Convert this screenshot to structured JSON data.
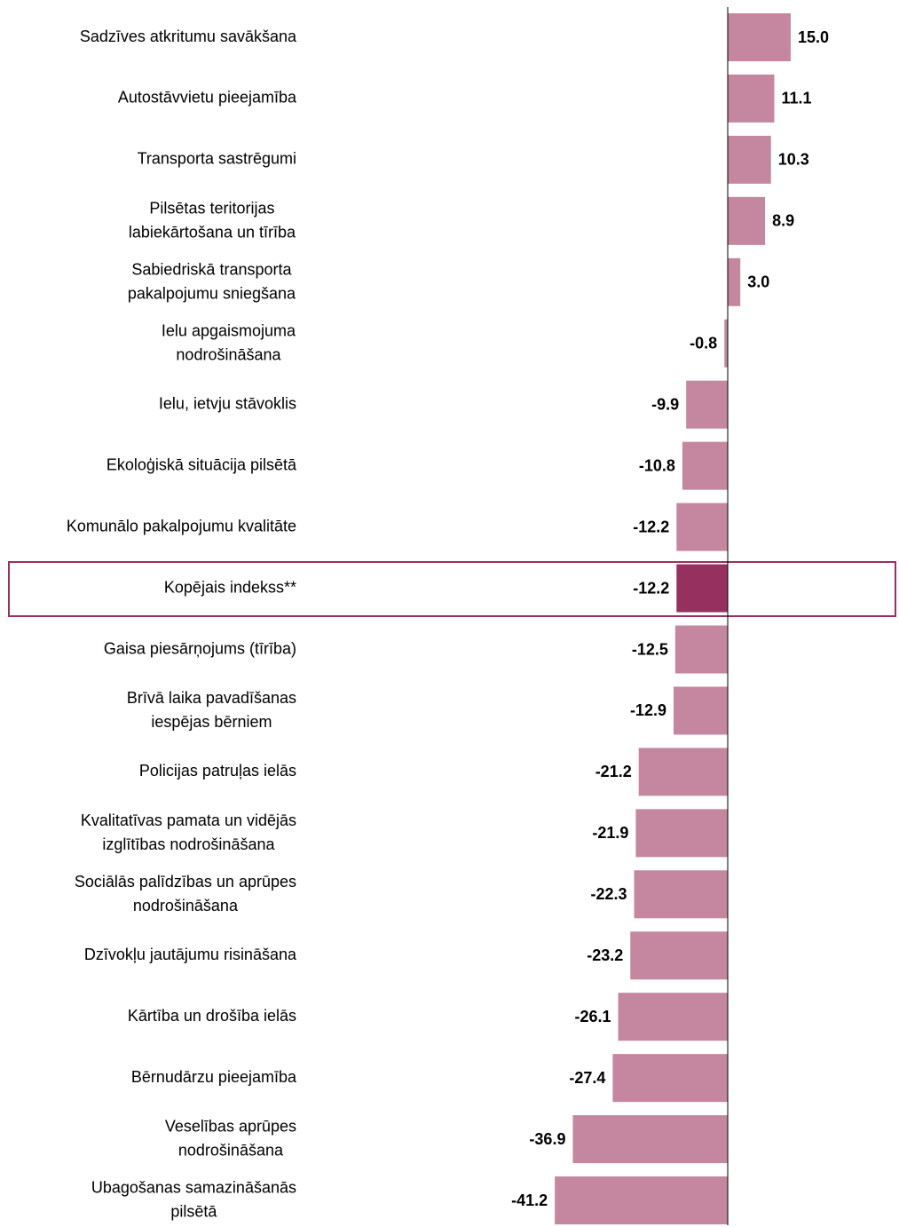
{
  "chart_data": {
    "type": "barh",
    "categories": [
      "Sadzīves atkritumu savākšana",
      "Autostāvvietu pieejamība",
      "Transporta sastrēgumi",
      "Pilsētas teritorijas\nlabiekārtošana un tīrība",
      "Sabiedriskā transporta\npakalpojumu sniegšana",
      "Ielu apgaismojuma\nnodrošināšana",
      "Ielu, ietvju stāvoklis",
      "Ekoloģiskā situācija pilsētā",
      "Komunālo pakalpojumu kvalitāte",
      "Kopējais indekss**",
      "Gaisa piesārņojums (tīrība)",
      "Brīvā laika pavadīšanas\niespējas bērniem",
      "Policijas patruļas ielās",
      "Kvalitatīvas pamata un vidējās\nizglītības nodrošināšana",
      "Sociālās palīdzības un aprūpes\nnodrošināšana",
      "Dzīvokļu jautājumu risināšana",
      "Kārtība un drošība ielās",
      "Bērnudārzu pieejamība",
      "Veselības aprūpes\nnodrošināšana",
      "Ubagošanas samazināšanās\npilsētā"
    ],
    "values": [
      15.0,
      11.1,
      10.3,
      8.9,
      3.0,
      -0.8,
      -9.9,
      -10.8,
      -12.2,
      -12.2,
      -12.5,
      -12.9,
      -21.2,
      -21.9,
      -22.3,
      -23.2,
      -26.1,
      -27.4,
      -36.9,
      -41.2
    ],
    "value_labels": [
      "15.0",
      "11.1",
      "10.3",
      "8.9",
      "3.0",
      "-0.8",
      "-9.9",
      "-10.8",
      "-12.2",
      "-12.2",
      "-12.5",
      "-12.9",
      "-21.2",
      "-21.9",
      "-22.3",
      "-23.2",
      "-26.1",
      "-27.4",
      "-36.9",
      "-41.2"
    ],
    "colors": [
      "#c4879f",
      "#c4879f",
      "#c4879f",
      "#c4879f",
      "#c4879f",
      "#c4879f",
      "#c4879f",
      "#c4879f",
      "#c4879f",
      "#96305f",
      "#c4879f",
      "#c4879f",
      "#c4879f",
      "#c4879f",
      "#c4879f",
      "#c4879f",
      "#c4879f",
      "#c4879f",
      "#c4879f",
      "#c4879f"
    ]
  }
}
